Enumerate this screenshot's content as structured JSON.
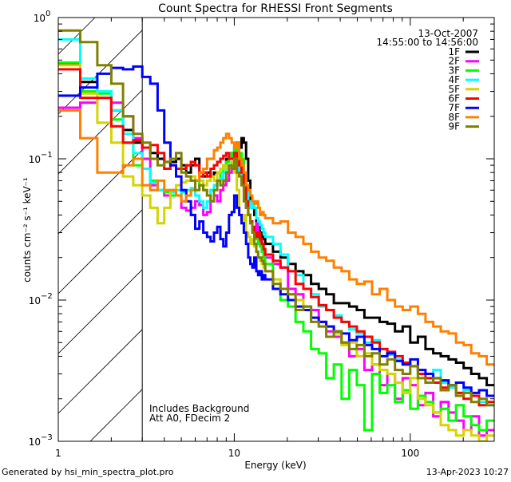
{
  "chart_data": {
    "type": "line",
    "style": "histogram-step",
    "title": "Count Spectra for RHESSI Front Segments",
    "xlabel": "Energy (keV)",
    "ylabel": "counts cm⁻² s⁻¹ keV⁻¹",
    "xscale": "log",
    "yscale": "log",
    "xlim": [
      1,
      300
    ],
    "ylim": [
      0.001,
      1
    ],
    "x_tick_labels": [
      {
        "value": 1,
        "label": "1"
      },
      {
        "value": 10,
        "label": "10"
      },
      {
        "value": 100,
        "label": "100"
      }
    ],
    "y_tick_labels": [
      {
        "value": 1,
        "base": "10",
        "exp": "0"
      },
      {
        "value": 0.1,
        "base": "10",
        "exp": "−1"
      },
      {
        "value": 0.01,
        "base": "10",
        "exp": "−2"
      },
      {
        "value": 0.001,
        "base": "10",
        "exp": "−3"
      }
    ],
    "date": "13-Oct-2007",
    "time_range": "14:55:00 to 14:56:00",
    "legend_placement": "top-right",
    "shaded_region_kev": [
      1,
      3
    ],
    "annotations": [
      "Includes Background",
      "Att A0, FDecim 2"
    ],
    "energy_edges": [
      1.0,
      1.333,
      1.667,
      2.0,
      2.333,
      2.667,
      3.0,
      3.333,
      3.667,
      4.0,
      4.333,
      4.667,
      5.0,
      5.333,
      5.667,
      6.0,
      6.333,
      6.667,
      7.0,
      7.333,
      7.667,
      8.0,
      8.333,
      8.667,
      9.0,
      9.333,
      9.667,
      10.0,
      10.333,
      10.667,
      11.0,
      11.333,
      11.667,
      12.0,
      12.333,
      12.667,
      13.0,
      13.333,
      13.667,
      14.0,
      14.333,
      14.667,
      15.0,
      16.6,
      18.3,
      20.2,
      22.3,
      24.7,
      27.3,
      30.2,
      33.3,
      36.8,
      40.7,
      45.0,
      49.7,
      54.9,
      60.7,
      67.0,
      74.1,
      81.9,
      90.5,
      100,
      110.5,
      122,
      135,
      149,
      165,
      182,
      201,
      222,
      246,
      272,
      300
    ],
    "series": [
      {
        "name": "1F",
        "color": "#000000",
        "values": [
          0.47,
          0.35,
          0.3,
          0.22,
          0.16,
          0.13,
          0.12,
          0.11,
          0.1,
          0.095,
          0.095,
          0.1,
          0.09,
          0.08,
          0.09,
          0.1,
          0.08,
          0.075,
          0.08,
          0.075,
          0.08,
          0.08,
          0.085,
          0.09,
          0.1,
          0.1,
          0.11,
          0.12,
          0.13,
          0.12,
          0.14,
          0.13,
          0.1,
          0.07,
          0.05,
          0.045,
          0.04,
          0.035,
          0.033,
          0.03,
          0.028,
          0.027,
          0.025,
          0.022,
          0.02,
          0.018,
          0.016,
          0.015,
          0.013,
          0.012,
          0.011,
          0.0095,
          0.0095,
          0.009,
          0.0085,
          0.0075,
          0.0075,
          0.007,
          0.0068,
          0.006,
          0.0065,
          0.005,
          0.0055,
          0.0045,
          0.0042,
          0.004,
          0.0038,
          0.0036,
          0.0033,
          0.003,
          0.0028,
          0.0025
        ]
      },
      {
        "name": "2F",
        "color": "#ff00ff",
        "values": [
          0.23,
          0.25,
          0.27,
          0.25,
          0.2,
          0.14,
          0.1,
          0.065,
          0.06,
          0.055,
          0.06,
          0.055,
          0.045,
          0.043,
          0.045,
          0.05,
          0.047,
          0.04,
          0.042,
          0.05,
          0.055,
          0.05,
          0.06,
          0.065,
          0.07,
          0.08,
          0.085,
          0.09,
          0.085,
          0.08,
          0.075,
          0.06,
          0.045,
          0.04,
          0.036,
          0.032,
          0.03,
          0.035,
          0.028,
          0.026,
          0.024,
          0.022,
          0.02,
          0.018,
          0.017,
          0.012,
          0.011,
          0.009,
          0.0085,
          0.007,
          0.006,
          0.0055,
          0.005,
          0.004,
          0.0045,
          0.0032,
          0.0035,
          0.0025,
          0.003,
          0.002,
          0.0028,
          0.0025,
          0.0018,
          0.0022,
          0.0015,
          0.0019,
          0.0016,
          0.0014,
          0.0012,
          0.0015,
          0.0011,
          0.0012
        ]
      },
      {
        "name": "3F",
        "color": "#00ff00",
        "values": [
          0.48,
          0.3,
          0.29,
          0.19,
          0.13,
          0.09,
          0.085,
          0.07,
          0.06,
          0.058,
          0.055,
          0.055,
          0.06,
          0.055,
          0.06,
          0.07,
          0.065,
          0.06,
          0.055,
          0.06,
          0.065,
          0.07,
          0.08,
          0.09,
          0.095,
          0.1,
          0.11,
          0.12,
          0.1,
          0.11,
          0.1,
          0.08,
          0.06,
          0.04,
          0.035,
          0.03,
          0.027,
          0.03,
          0.025,
          0.024,
          0.022,
          0.02,
          0.018,
          0.012,
          0.01,
          0.009,
          0.007,
          0.006,
          0.0045,
          0.0042,
          0.0028,
          0.0035,
          0.002,
          0.0032,
          0.0025,
          0.0012,
          0.003,
          0.0022,
          0.0025,
          0.0019,
          0.0023,
          0.0017,
          0.0021,
          0.0019,
          0.0016,
          0.0017,
          0.0014,
          0.0018,
          0.0015,
          0.0013,
          0.0012,
          0.0014
        ]
      },
      {
        "name": "4F",
        "color": "#00ffff",
        "values": [
          0.7,
          0.37,
          0.3,
          0.22,
          0.15,
          0.11,
          0.085,
          0.068,
          0.06,
          0.06,
          0.058,
          0.06,
          0.058,
          0.06,
          0.062,
          0.055,
          0.05,
          0.045,
          0.05,
          0.06,
          0.065,
          0.07,
          0.072,
          0.08,
          0.085,
          0.09,
          0.095,
          0.1,
          0.09,
          0.08,
          0.075,
          0.07,
          0.06,
          0.05,
          0.045,
          0.05,
          0.045,
          0.038,
          0.036,
          0.034,
          0.032,
          0.03,
          0.028,
          0.025,
          0.021,
          0.016,
          0.015,
          0.012,
          0.011,
          0.009,
          0.0085,
          0.0078,
          0.007,
          0.0062,
          0.0058,
          0.005,
          0.0052,
          0.0045,
          0.0041,
          0.0038,
          0.0036,
          0.0034,
          0.003,
          0.0028,
          0.0032,
          0.0026,
          0.0024,
          0.0022,
          0.0023,
          0.0021,
          0.0019,
          0.0018
        ]
      },
      {
        "name": "5F",
        "color": "#d4d400",
        "values": [
          0.46,
          0.29,
          0.18,
          0.13,
          0.075,
          0.065,
          0.055,
          0.045,
          0.035,
          0.045,
          0.06,
          0.065,
          0.068,
          0.07,
          0.075,
          0.07,
          0.07,
          0.065,
          0.07,
          0.075,
          0.07,
          0.08,
          0.085,
          0.09,
          0.085,
          0.09,
          0.095,
          0.08,
          0.06,
          0.04,
          0.035,
          0.04,
          0.03,
          0.028,
          0.025,
          0.027,
          0.024,
          0.022,
          0.02,
          0.019,
          0.018,
          0.017,
          0.016,
          0.014,
          0.012,
          0.011,
          0.01,
          0.0085,
          0.0075,
          0.007,
          0.0065,
          0.0058,
          0.0048,
          0.005,
          0.004,
          0.0042,
          0.0035,
          0.0032,
          0.003,
          0.0026,
          0.0022,
          0.0028,
          0.002,
          0.0018,
          0.0016,
          0.0013,
          0.0012,
          0.0011,
          0.0012,
          0.0011,
          0.001,
          0.0011
        ]
      },
      {
        "name": "6F",
        "color": "#ff0000",
        "values": [
          0.43,
          0.27,
          0.27,
          0.17,
          0.13,
          0.135,
          0.12,
          0.125,
          0.11,
          0.085,
          0.09,
          0.085,
          0.085,
          0.09,
          0.095,
          0.09,
          0.075,
          0.08,
          0.075,
          0.085,
          0.09,
          0.095,
          0.1,
          0.105,
          0.11,
          0.1,
          0.1,
          0.11,
          0.1,
          0.09,
          0.08,
          0.065,
          0.05,
          0.04,
          0.036,
          0.033,
          0.03,
          0.028,
          0.03,
          0.027,
          0.025,
          0.023,
          0.021,
          0.019,
          0.017,
          0.016,
          0.013,
          0.012,
          0.0105,
          0.0092,
          0.0085,
          0.0075,
          0.007,
          0.0065,
          0.006,
          0.0055,
          0.005,
          0.0045,
          0.0043,
          0.004,
          0.0036,
          0.0034,
          0.003,
          0.0028,
          0.0026,
          0.0024,
          0.0025,
          0.0022,
          0.002,
          0.0021,
          0.0018,
          0.0019
        ]
      },
      {
        "name": "7F",
        "color": "#0000ff",
        "values": [
          0.28,
          0.32,
          0.4,
          0.44,
          0.43,
          0.45,
          0.38,
          0.34,
          0.22,
          0.13,
          0.09,
          0.075,
          0.06,
          0.05,
          0.04,
          0.032,
          0.036,
          0.03,
          0.028,
          0.026,
          0.03,
          0.033,
          0.027,
          0.024,
          0.03,
          0.04,
          0.042,
          0.055,
          0.045,
          0.04,
          0.035,
          0.03,
          0.025,
          0.02,
          0.018,
          0.017,
          0.02,
          0.016,
          0.015,
          0.016,
          0.014,
          0.015,
          0.014,
          0.012,
          0.011,
          0.01,
          0.009,
          0.0085,
          0.0075,
          0.007,
          0.0065,
          0.006,
          0.0058,
          0.0052,
          0.0055,
          0.0048,
          0.0045,
          0.004,
          0.0042,
          0.0037,
          0.0035,
          0.0038,
          0.0032,
          0.003,
          0.0028,
          0.0027,
          0.0025,
          0.0026,
          0.0024,
          0.0022,
          0.0023,
          0.0021
        ]
      },
      {
        "name": "8F",
        "color": "#ff8000",
        "values": [
          0.22,
          0.14,
          0.08,
          0.08,
          0.09,
          0.1,
          0.065,
          0.06,
          0.07,
          0.06,
          0.06,
          0.055,
          0.05,
          0.055,
          0.06,
          0.07,
          0.08,
          0.085,
          0.1,
          0.1,
          0.115,
          0.12,
          0.13,
          0.14,
          0.15,
          0.14,
          0.13,
          0.12,
          0.13,
          0.1,
          0.09,
          0.08,
          0.065,
          0.06,
          0.055,
          0.05,
          0.048,
          0.05,
          0.045,
          0.04,
          0.042,
          0.04,
          0.038,
          0.035,
          0.036,
          0.03,
          0.028,
          0.025,
          0.022,
          0.02,
          0.019,
          0.017,
          0.016,
          0.014,
          0.013,
          0.0135,
          0.011,
          0.012,
          0.01,
          0.009,
          0.0085,
          0.009,
          0.008,
          0.007,
          0.0065,
          0.006,
          0.0058,
          0.005,
          0.0048,
          0.0042,
          0.004,
          0.0035
        ]
      },
      {
        "name": "9F",
        "color": "#808000",
        "values": [
          0.81,
          0.67,
          0.46,
          0.34,
          0.2,
          0.15,
          0.13,
          0.1,
          0.09,
          0.095,
          0.1,
          0.11,
          0.08,
          0.075,
          0.07,
          0.06,
          0.065,
          0.06,
          0.055,
          0.05,
          0.06,
          0.07,
          0.065,
          0.07,
          0.08,
          0.09,
          0.085,
          0.1,
          0.08,
          0.075,
          0.065,
          0.05,
          0.045,
          0.04,
          0.035,
          0.03,
          0.025,
          0.022,
          0.02,
          0.02,
          0.019,
          0.018,
          0.016,
          0.013,
          0.012,
          0.011,
          0.0085,
          0.009,
          0.007,
          0.0065,
          0.0055,
          0.006,
          0.005,
          0.0045,
          0.0048,
          0.004,
          0.0042,
          0.0035,
          0.0038,
          0.0032,
          0.003,
          0.0034,
          0.0028,
          0.0026,
          0.0028,
          0.0023,
          0.0025,
          0.0021,
          0.0022,
          0.0019,
          0.002,
          0.0018
        ]
      }
    ]
  },
  "footer": {
    "generated_by": "Generated by hsi_min_spectra_plot.pro",
    "timestamp": "13-Apr-2023 10:27"
  }
}
